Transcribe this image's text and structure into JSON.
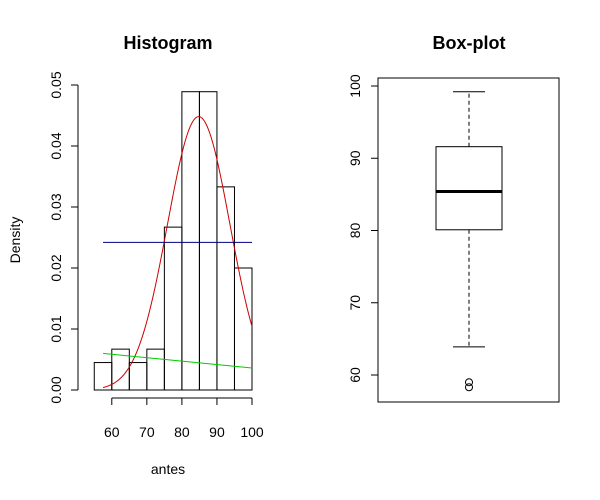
{
  "chart_data": [
    {
      "type": "histogram",
      "title": "Histogram",
      "xlabel": "antes",
      "ylabel": "Density",
      "xlim": [
        52.5,
        100
      ],
      "ylim": [
        0,
        0.05
      ],
      "x_ticks": [
        60,
        70,
        80,
        90,
        100
      ],
      "x_tick_labels": [
        "60",
        "70",
        "80",
        "90",
        "100"
      ],
      "y_ticks": [
        0,
        0.01,
        0.02,
        0.03,
        0.04,
        0.05
      ],
      "y_tick_labels": [
        "0.00",
        "0.01",
        "0.02",
        "0.03",
        "0.04",
        "0.05"
      ],
      "bins": [
        {
          "from": 55,
          "to": 60,
          "density": 0.0045
        },
        {
          "from": 60,
          "to": 65,
          "density": 0.0067
        },
        {
          "from": 65,
          "to": 70,
          "density": 0.0045
        },
        {
          "from": 70,
          "to": 75,
          "density": 0.0067
        },
        {
          "from": 75,
          "to": 80,
          "density": 0.0267
        },
        {
          "from": 80,
          "to": 85,
          "density": 0.0489
        },
        {
          "from": 85,
          "to": 90,
          "density": 0.0489
        },
        {
          "from": 90,
          "to": 95,
          "density": 0.0333
        },
        {
          "from": 95,
          "to": 100,
          "density": 0.02
        }
      ],
      "overlays": [
        {
          "kind": "normal-curve",
          "color": "#cc0000",
          "mean": 84.8,
          "sd": 8.9,
          "x_range": [
            57.5,
            100
          ]
        },
        {
          "kind": "horizontal-line",
          "color": "#000080",
          "y": 0.0242,
          "x_range": [
            57.5,
            100
          ]
        },
        {
          "kind": "line",
          "color": "#00cc00",
          "x": [
            57.5,
            100
          ],
          "y": [
            0.006,
            0.0036
          ]
        }
      ]
    },
    {
      "type": "boxplot",
      "title": "Box-plot",
      "ylim": [
        56,
        101
      ],
      "y_ticks": [
        60,
        70,
        80,
        90,
        100
      ],
      "y_tick_labels": [
        "60",
        "70",
        "80",
        "90",
        "100"
      ],
      "whisker_low": 63.9,
      "q1": 80.1,
      "median": 85.4,
      "q3": 91.6,
      "whisker_high": 99.2,
      "outliers": [
        58.3,
        59.0
      ]
    }
  ]
}
